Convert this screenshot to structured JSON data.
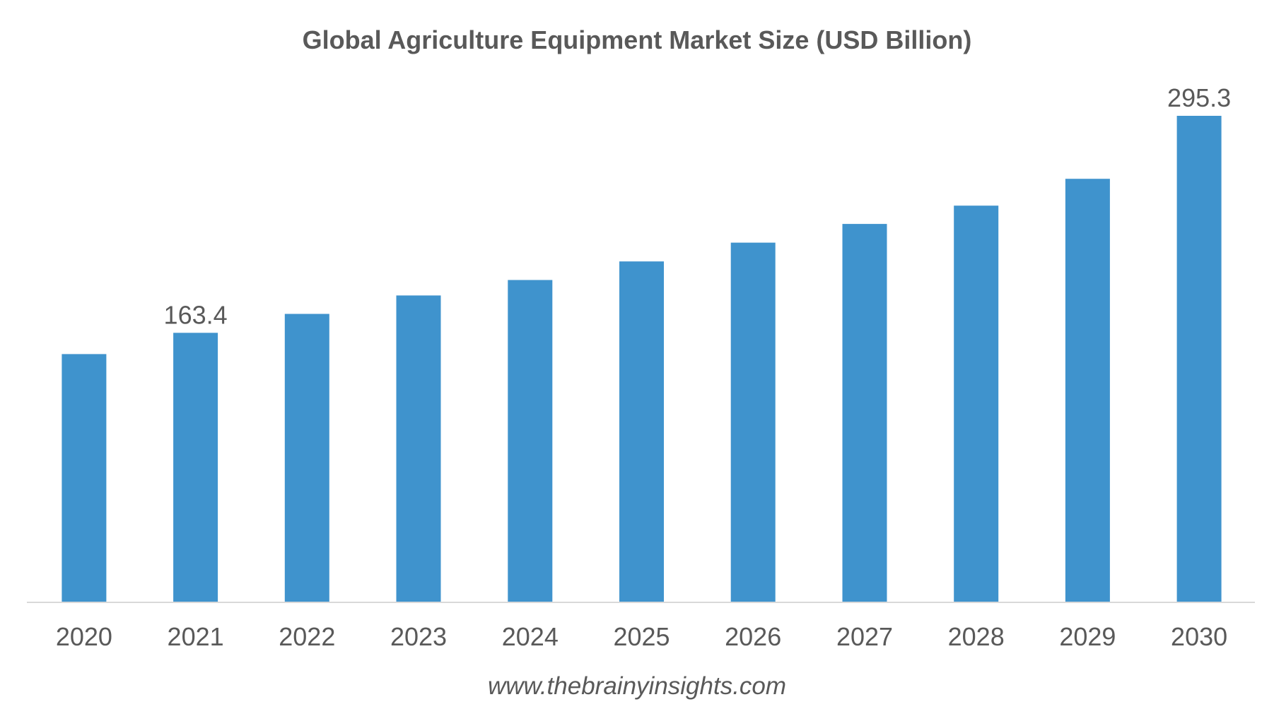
{
  "chart_data": {
    "type": "bar",
    "title": "Global Agriculture Equipment Market Size (USD Billion)",
    "categories": [
      "2020",
      "2021",
      "2022",
      "2023",
      "2024",
      "2025",
      "2026",
      "2027",
      "2028",
      "2029",
      "2030"
    ],
    "values": [
      150.5,
      163.4,
      174.9,
      186.1,
      195.5,
      206.8,
      218.2,
      229.6,
      240.7,
      257.0,
      295.3
    ],
    "data_labels": [
      {
        "category": "2021",
        "text": "163.4"
      },
      {
        "category": "2030",
        "text": "295.3"
      }
    ],
    "xlabel": "",
    "ylabel": "",
    "ylim": [
      0,
      300
    ],
    "grid": false,
    "legend": "none",
    "bar_color": "#3f93cd",
    "axis_color": "#d9d9d9",
    "text_color": "#595959"
  },
  "source": "www.thebrainyinsights.com"
}
